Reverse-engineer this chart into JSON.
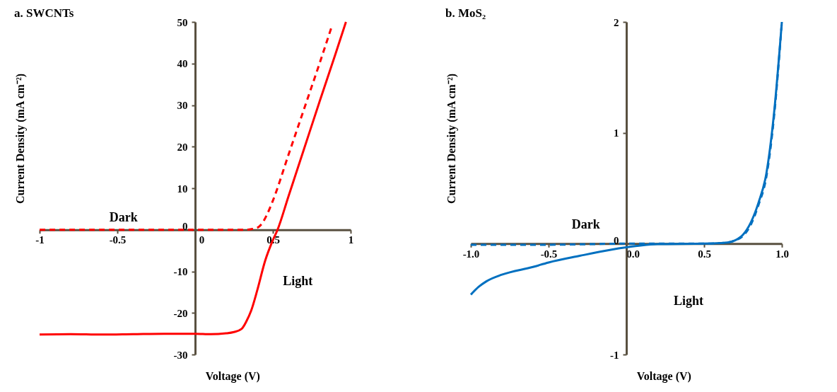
{
  "chart_data": [
    {
      "type": "line",
      "title": "a. SWCNTs",
      "xlabel": "Voltage (V)",
      "ylabel": "Current Density (mA cm⁻²)",
      "xlim": [
        -1,
        1
      ],
      "ylim": [
        -30,
        50
      ],
      "xticks": [
        -1,
        -0.5,
        0,
        0.5,
        1
      ],
      "yticks": [
        -30,
        -20,
        -10,
        0,
        10,
        20,
        30,
        40,
        50
      ],
      "grid": false,
      "series": [
        {
          "color": "#ff0000",
          "line_style": "dashed",
          "x": [
            -1,
            -0.8,
            -0.6,
            -0.4,
            -0.2,
            0,
            0.2,
            0.3,
            0.35,
            0.4,
            0.43,
            0.46,
            0.5,
            0.6,
            0.7,
            0.8,
            0.875
          ],
          "values": [
            0,
            0,
            0,
            0,
            0,
            0,
            0,
            0,
            0.1,
            0.5,
            1.5,
            3.5,
            7,
            18,
            29,
            40,
            48.5
          ]
        },
        {
          "color": "#ff0000",
          "line_style": "solid",
          "x": [
            -1,
            -0.8,
            -0.6,
            -0.4,
            -0.2,
            0,
            0.1,
            0.2,
            0.25,
            0.3,
            0.33,
            0.36,
            0.4,
            0.45,
            0.5,
            0.53,
            0.6,
            0.7,
            0.8,
            0.9,
            0.97
          ],
          "values": [
            -25.2,
            -25.1,
            -25.2,
            -25.1,
            -25,
            -25,
            -25.1,
            -24.9,
            -24.6,
            -23.8,
            -22,
            -19.5,
            -14.5,
            -7.5,
            -2.5,
            0,
            8,
            19.4,
            30.8,
            42,
            50
          ]
        }
      ],
      "annotations": [
        "Dark",
        "Light"
      ]
    },
    {
      "type": "line",
      "title": "b. MoS₂",
      "xlabel": "Voltage (V)",
      "ylabel": "Current Density (mA cm⁻²)",
      "xlim": [
        -1,
        1
      ],
      "ylim": [
        -1,
        2
      ],
      "xticks": [
        {
          "value": -1,
          "label": "-1.0"
        },
        -0.5,
        {
          "value": 0,
          "label": "0.0"
        },
        0.5,
        {
          "value": 1,
          "label": "1.0"
        }
      ],
      "yticks": [
        -1,
        0,
        1,
        2
      ],
      "grid": false,
      "series": [
        {
          "color": "#0070c0",
          "line_style": "dashed",
          "x": [
            -1,
            -0.5,
            0,
            0.5,
            0.65,
            0.7,
            0.75,
            0.8,
            0.85,
            0.9,
            0.95,
            1
          ],
          "values": [
            -0.01,
            -0.01,
            0,
            0,
            0.01,
            0.03,
            0.07,
            0.17,
            0.35,
            0.6,
            1.15,
            2
          ]
        },
        {
          "color": "#0070c0",
          "line_style": "solid",
          "x": [
            -1,
            -0.95,
            -0.9,
            -0.8,
            -0.6,
            -0.5,
            -0.3,
            -0.1,
            0,
            0.1,
            0.2,
            0.5,
            0.6,
            0.65,
            0.7,
            0.75,
            0.8,
            0.85,
            0.9,
            0.95,
            1
          ],
          "values": [
            -0.46,
            -0.39,
            -0.34,
            -0.28,
            -0.21,
            -0.17,
            -0.11,
            -0.055,
            -0.033,
            -0.015,
            -0.005,
            0,
            0.005,
            0.01,
            0.03,
            0.08,
            0.19,
            0.37,
            0.63,
            1.18,
            2
          ]
        }
      ],
      "annotations": [
        "Dark",
        "Light"
      ]
    }
  ]
}
